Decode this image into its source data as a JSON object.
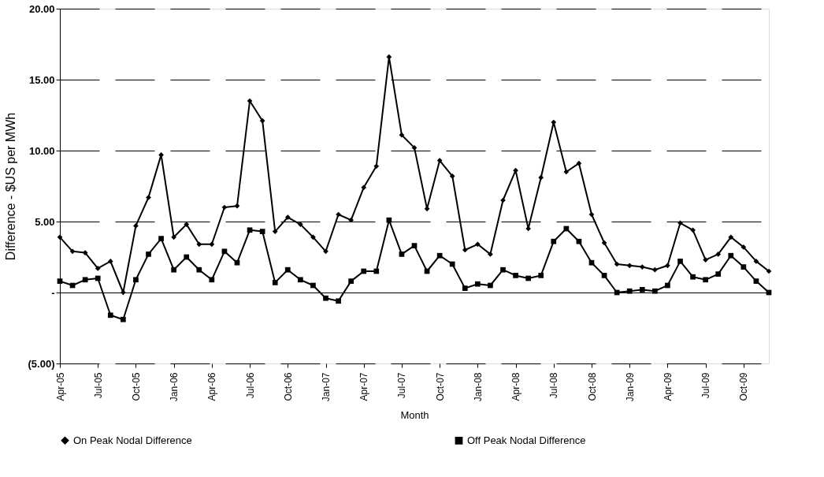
{
  "chart_data": {
    "type": "line",
    "xlabel": "Month",
    "ylabel": "Difference - $US per MWh",
    "categories": [
      "Apr-05",
      null,
      null,
      "Jul-05",
      null,
      null,
      "Oct-05",
      null,
      null,
      "Jan-06",
      null,
      null,
      "Apr-06",
      null,
      null,
      "Jul-06",
      null,
      null,
      "Oct-06",
      null,
      null,
      "Jan-07",
      null,
      null,
      "Apr-07",
      null,
      null,
      "Jul-07",
      null,
      null,
      "Oct-07",
      null,
      null,
      "Jan-08",
      null,
      null,
      "Apr-08",
      null,
      null,
      "Jul-08",
      null,
      null,
      "Oct-08",
      null,
      null,
      "Jan-09",
      null,
      null,
      "Apr-09",
      null,
      null,
      "Jul-09",
      null,
      null,
      "Oct-09",
      null,
      null
    ],
    "series": [
      {
        "name": "On Peak Nodal Difference",
        "color": "#000000",
        "marker": "diamond",
        "values": [
          3.9,
          2.9,
          2.8,
          1.7,
          2.2,
          0.0,
          4.7,
          6.7,
          9.7,
          3.9,
          4.8,
          3.4,
          3.4,
          6.0,
          6.1,
          13.5,
          12.1,
          4.3,
          5.3,
          4.8,
          3.9,
          2.9,
          5.5,
          5.1,
          7.4,
          8.9,
          16.6,
          11.1,
          10.2,
          5.9,
          9.3,
          8.2,
          3.0,
          3.4,
          2.7,
          6.5,
          8.6,
          4.5,
          8.1,
          12.0,
          8.5,
          9.1,
          5.5,
          3.5,
          2.0,
          1.9,
          1.8,
          1.6,
          1.9,
          4.9,
          4.4,
          2.3,
          2.7,
          3.9,
          3.2,
          2.2,
          1.5
        ]
      },
      {
        "name": "Off Peak Nodal Difference",
        "color": "#000000",
        "marker": "square",
        "values": [
          0.8,
          0.5,
          0.9,
          1.0,
          -1.6,
          -1.9,
          0.9,
          2.7,
          3.8,
          1.6,
          2.5,
          1.6,
          0.9,
          2.9,
          2.1,
          4.4,
          4.3,
          0.7,
          1.6,
          0.9,
          0.5,
          -0.4,
          -0.6,
          0.8,
          1.5,
          1.5,
          5.1,
          2.7,
          3.3,
          1.5,
          2.6,
          2.0,
          0.3,
          0.6,
          0.5,
          1.6,
          1.2,
          1.0,
          1.2,
          3.6,
          4.5,
          3.6,
          2.1,
          1.2,
          0.0,
          0.1,
          0.2,
          0.1,
          0.5,
          2.2,
          1.1,
          0.9,
          1.3,
          2.6,
          1.8,
          0.8,
          0.0
        ]
      }
    ],
    "ylim": [
      -5,
      20
    ],
    "yticks": [
      {
        "value": -5,
        "label": "(5.00)"
      },
      {
        "value": 0,
        "label": "-"
      },
      {
        "value": 5,
        "label": "5.00"
      },
      {
        "value": 10,
        "label": "10.00"
      },
      {
        "value": 15,
        "label": "15.00"
      },
      {
        "value": 20,
        "label": "20.00"
      }
    ],
    "grid": "y",
    "legend": "bottom",
    "line_style": "solid"
  }
}
